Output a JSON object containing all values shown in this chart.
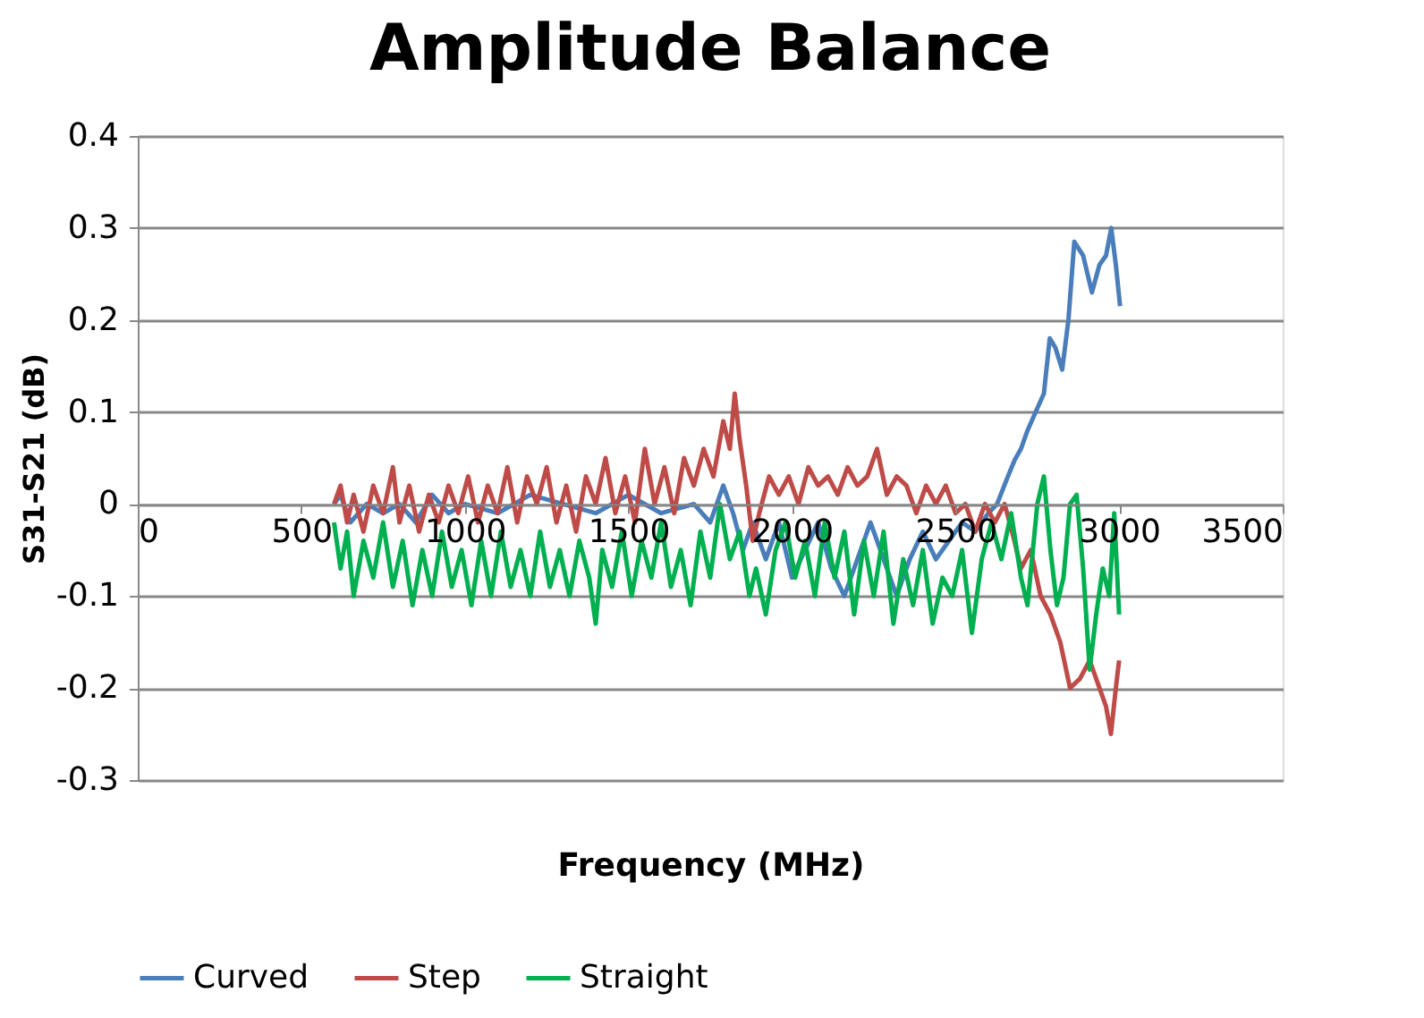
{
  "chart_data": {
    "type": "line",
    "title": "Amplitude Balance",
    "xlabel": "Frequency (MHz)",
    "ylabel": "S31-S21 (dB)",
    "xlim": [
      0,
      3500
    ],
    "xticks": [
      0,
      500,
      1000,
      1500,
      2000,
      2500,
      3000,
      3500
    ],
    "ylim": [
      -0.3,
      0.4
    ],
    "yticks": [
      -0.3,
      -0.2,
      -0.1,
      0,
      0.1,
      0.2,
      0.3,
      0.4
    ],
    "grid": "y",
    "legend": "bottom",
    "marker": "none",
    "line_style": "solid",
    "series": [
      {
        "name": "Curved",
        "color": "#4a7ebb",
        "x": [
          600,
          620,
          650,
          700,
          750,
          800,
          850,
          900,
          950,
          1000,
          1100,
          1200,
          1300,
          1400,
          1500,
          1600,
          1700,
          1750,
          1790,
          1820,
          1850,
          1880,
          1920,
          1960,
          2000,
          2040,
          2080,
          2120,
          2160,
          2200,
          2240,
          2280,
          2320,
          2360,
          2400,
          2440,
          2480,
          2520,
          2560,
          2600,
          2627,
          2660,
          2681,
          2700,
          2720,
          2745,
          2770,
          2788,
          2805,
          2826,
          2845,
          2863,
          2890,
          2917,
          2940,
          2960,
          2976,
          2990,
          3003
        ],
        "values": [
          0.0,
          0.01,
          -0.02,
          0.0,
          -0.01,
          0.0,
          -0.02,
          0.01,
          -0.01,
          0.0,
          -0.01,
          0.01,
          0.0,
          -0.01,
          0.01,
          -0.01,
          0.0,
          -0.02,
          0.02,
          -0.01,
          -0.05,
          -0.02,
          -0.06,
          -0.02,
          -0.08,
          -0.05,
          -0.02,
          -0.07,
          -0.1,
          -0.06,
          -0.02,
          -0.06,
          -0.1,
          -0.06,
          -0.03,
          -0.06,
          -0.04,
          -0.02,
          -0.03,
          -0.01,
          0.0,
          0.03,
          0.048,
          0.06,
          0.08,
          0.1,
          0.12,
          0.18,
          0.17,
          0.146,
          0.2,
          0.285,
          0.27,
          0.23,
          0.26,
          0.27,
          0.3,
          0.26,
          0.215
        ]
      },
      {
        "name": "Step",
        "color": "#be4b48",
        "x": [
          600,
          620,
          640,
          660,
          690,
          720,
          750,
          780,
          800,
          830,
          860,
          890,
          920,
          950,
          980,
          1010,
          1040,
          1070,
          1100,
          1130,
          1160,
          1190,
          1220,
          1250,
          1280,
          1310,
          1340,
          1370,
          1400,
          1430,
          1460,
          1490,
          1520,
          1550,
          1580,
          1610,
          1640,
          1670,
          1700,
          1730,
          1760,
          1790,
          1810,
          1825,
          1840,
          1860,
          1880,
          1900,
          1930,
          1960,
          1990,
          2020,
          2050,
          2080,
          2110,
          2140,
          2170,
          2200,
          2230,
          2260,
          2290,
          2320,
          2350,
          2380,
          2410,
          2440,
          2470,
          2500,
          2530,
          2560,
          2590,
          2620,
          2650,
          2680,
          2700,
          2730,
          2760,
          2790,
          2820,
          2850,
          2880,
          2910,
          2940,
          2960,
          2975,
          2990,
          3000
        ],
        "values": [
          0.0,
          0.02,
          -0.02,
          0.01,
          -0.03,
          0.02,
          -0.01,
          0.04,
          -0.02,
          0.02,
          -0.03,
          0.01,
          -0.02,
          0.02,
          -0.01,
          0.03,
          -0.02,
          0.02,
          -0.01,
          0.04,
          -0.02,
          0.03,
          0.0,
          0.04,
          -0.02,
          0.02,
          -0.03,
          0.03,
          0.0,
          0.05,
          -0.01,
          0.03,
          -0.02,
          0.06,
          0.0,
          0.04,
          -0.01,
          0.05,
          0.02,
          0.06,
          0.03,
          0.09,
          0.06,
          0.12,
          0.07,
          0.02,
          -0.04,
          -0.01,
          0.03,
          0.01,
          0.03,
          0.0,
          0.04,
          0.02,
          0.03,
          0.01,
          0.04,
          0.02,
          0.03,
          0.06,
          0.01,
          0.03,
          0.02,
          -0.01,
          0.02,
          0.0,
          0.02,
          -0.01,
          0.0,
          -0.03,
          0.0,
          -0.02,
          0.0,
          -0.04,
          -0.07,
          -0.05,
          -0.1,
          -0.12,
          -0.15,
          -0.2,
          -0.19,
          -0.17,
          -0.2,
          -0.22,
          -0.25,
          -0.2,
          -0.17
        ]
      },
      {
        "name": "Straight",
        "color": "#00b050",
        "x": [
          600,
          620,
          640,
          660,
          690,
          720,
          750,
          780,
          810,
          840,
          870,
          900,
          930,
          960,
          990,
          1020,
          1050,
          1080,
          1110,
          1140,
          1170,
          1200,
          1230,
          1260,
          1290,
          1320,
          1350,
          1380,
          1400,
          1420,
          1450,
          1480,
          1510,
          1540,
          1570,
          1600,
          1630,
          1660,
          1690,
          1720,
          1750,
          1780,
          1810,
          1840,
          1870,
          1890,
          1920,
          1950,
          1980,
          2010,
          2040,
          2070,
          2100,
          2130,
          2160,
          2190,
          2220,
          2250,
          2280,
          2310,
          2340,
          2370,
          2400,
          2430,
          2460,
          2490,
          2520,
          2550,
          2580,
          2610,
          2640,
          2670,
          2700,
          2720,
          2750,
          2770,
          2790,
          2810,
          2830,
          2850,
          2870,
          2890,
          2910,
          2930,
          2950,
          2970,
          2985,
          3000
        ],
        "values": [
          -0.02,
          -0.07,
          -0.03,
          -0.1,
          -0.04,
          -0.08,
          -0.02,
          -0.09,
          -0.04,
          -0.11,
          -0.05,
          -0.1,
          -0.03,
          -0.09,
          -0.05,
          -0.11,
          -0.04,
          -0.1,
          -0.03,
          -0.09,
          -0.05,
          -0.1,
          -0.03,
          -0.09,
          -0.05,
          -0.1,
          -0.04,
          -0.08,
          -0.13,
          -0.05,
          -0.09,
          -0.03,
          -0.1,
          -0.04,
          -0.08,
          -0.02,
          -0.09,
          -0.05,
          -0.11,
          -0.03,
          -0.08,
          0.0,
          -0.06,
          -0.03,
          -0.1,
          -0.07,
          -0.12,
          -0.05,
          -0.02,
          -0.08,
          -0.04,
          -0.1,
          -0.02,
          -0.08,
          -0.03,
          -0.12,
          -0.04,
          -0.1,
          -0.03,
          -0.13,
          -0.06,
          -0.11,
          -0.05,
          -0.13,
          -0.08,
          -0.1,
          -0.05,
          -0.14,
          -0.06,
          -0.02,
          -0.06,
          -0.01,
          -0.08,
          -0.11,
          0.0,
          0.03,
          -0.05,
          -0.11,
          -0.08,
          0.0,
          0.01,
          -0.07,
          -0.18,
          -0.12,
          -0.07,
          -0.1,
          -0.01,
          -0.12
        ]
      }
    ]
  }
}
